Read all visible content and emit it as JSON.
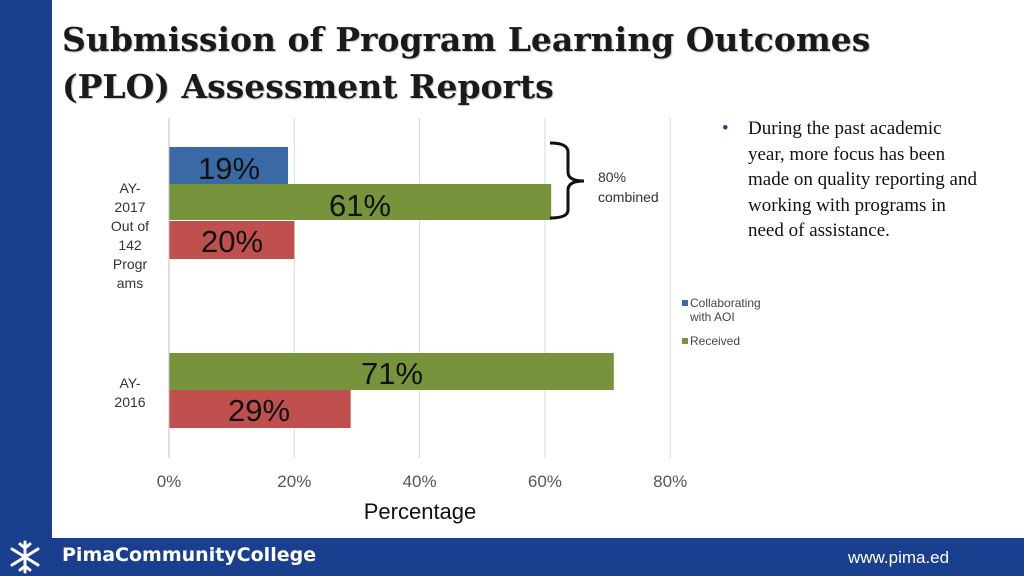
{
  "slide": {
    "title_line1": "Submission of Program Learning Outcomes",
    "title_line2": "(PLO) Assessment Reports",
    "bullet": "During the past academic year, more focus has been made on quality reporting and working with programs in need of assistance.",
    "brace_label_line1": "80%",
    "brace_label_line2": "combined"
  },
  "footer": {
    "college": "PimaCommunityCollege",
    "url": "www.pima.ed",
    "logo_icon": "pima-snowflake-logo"
  },
  "colors": {
    "band": "#1b3f8f",
    "collaborating": "#3a6aa6",
    "received": "#77933c",
    "red": "#c0504d"
  },
  "chart_data": {
    "type": "bar",
    "orientation": "horizontal",
    "xlabel": "Percentage",
    "xlim": [
      0,
      80
    ],
    "xticks": [
      "0%",
      "20%",
      "40%",
      "60%",
      "80%"
    ],
    "grid": true,
    "legend_position": "right",
    "categories": [
      {
        "label_lines": [
          "AY-",
          "2017",
          "Out of",
          "142",
          "Progr",
          "ams"
        ]
      },
      {
        "label_lines": [
          "AY-",
          "2016"
        ]
      }
    ],
    "series": [
      {
        "name": "Collaborating with AOI",
        "color": "#3a6aa6",
        "values": [
          19,
          null
        ],
        "labels": [
          "19%",
          ""
        ]
      },
      {
        "name": "Received",
        "color": "#77933c",
        "values": [
          61,
          71
        ],
        "labels": [
          "61%",
          "71%"
        ]
      },
      {
        "name": "",
        "color": "#c0504d",
        "values": [
          20,
          29
        ],
        "labels": [
          "20%",
          "29%"
        ]
      }
    ],
    "legend": [
      {
        "label": "Collaborating with AOI",
        "color": "#3a6aa6"
      },
      {
        "label": "Received",
        "color": "#77933c"
      }
    ]
  }
}
